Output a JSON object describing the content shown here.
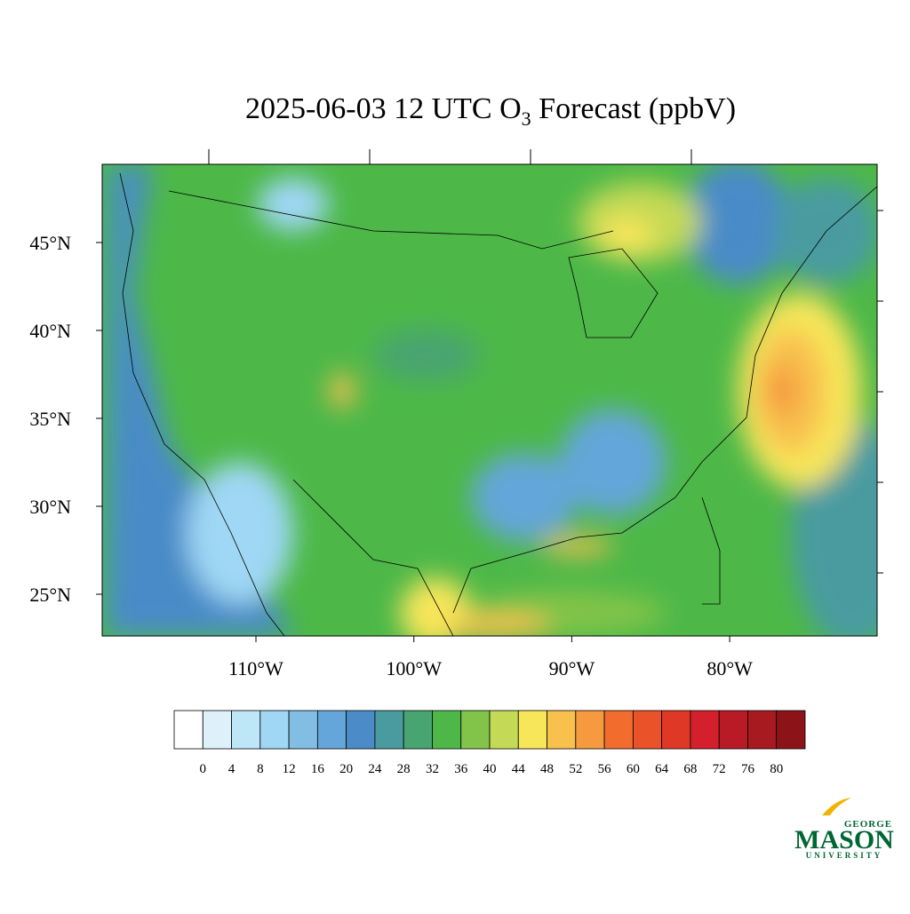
{
  "title": {
    "main": "2025-06-03 12 UTC O",
    "subscript": "3",
    "rest": " Forecast (ppbV)"
  },
  "map": {
    "lat_ticks": [
      {
        "value": 45,
        "label": "45°N"
      },
      {
        "value": 40,
        "label": "40°N"
      },
      {
        "value": 35,
        "label": "35°N"
      },
      {
        "value": 30,
        "label": "30°N"
      },
      {
        "value": 25,
        "label": "25°N"
      }
    ],
    "lon_ticks": [
      {
        "value": -110,
        "label": "110°W"
      },
      {
        "value": -100,
        "label": "100°W"
      },
      {
        "value": -90,
        "label": "90°W"
      },
      {
        "value": -80,
        "label": "80°W"
      }
    ]
  },
  "colorbar": {
    "levels": [
      0,
      4,
      8,
      12,
      16,
      20,
      24,
      28,
      32,
      36,
      40,
      44,
      48,
      52,
      56,
      60,
      64,
      68,
      72,
      76,
      80
    ],
    "colors": [
      "#ffffff",
      "#def1fa",
      "#bde6f7",
      "#9fd7f4",
      "#82bee3",
      "#64a6d9",
      "#4a8bc8",
      "#4a9ba0",
      "#48a470",
      "#4db848",
      "#82c44a",
      "#c4d955",
      "#f7e65a",
      "#f8c04d",
      "#f69a3f",
      "#f26c2e",
      "#ea5229",
      "#e03827",
      "#d4202c",
      "#b81b25",
      "#a71a20",
      "#8c1419"
    ]
  },
  "logo": {
    "top": "GEORGE",
    "name": "MASON",
    "bottom": "UNIVERSITY"
  }
}
